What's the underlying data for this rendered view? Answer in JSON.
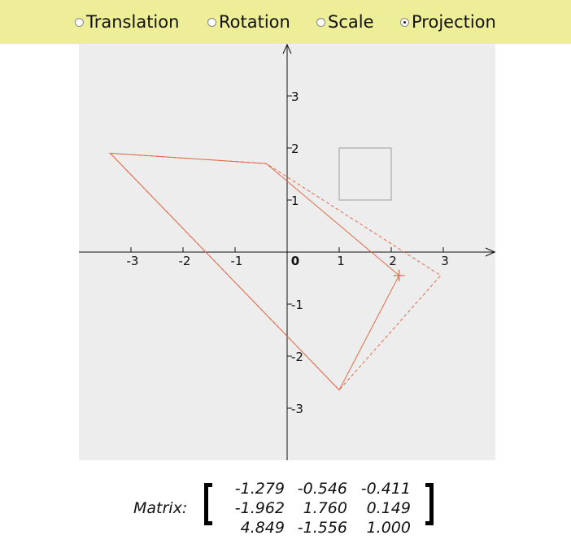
{
  "mode_selector": {
    "options": [
      {
        "label": "Translation",
        "selected": false
      },
      {
        "label": "Rotation",
        "selected": false
      },
      {
        "label": "Scale",
        "selected": false
      },
      {
        "label": "Projection",
        "selected": true
      }
    ]
  },
  "plot": {
    "background": "#ededed",
    "axis_color": "#111111",
    "shape_color": "#e06b4a",
    "reference_square_color": "#aaaaaa",
    "xlim": [
      -4,
      4
    ],
    "ylim": [
      -4,
      4
    ],
    "x_ticks": [
      "-3",
      "-2",
      "-1",
      "0",
      "1",
      "2",
      "3"
    ],
    "y_ticks": [
      "3",
      "2",
      "1",
      "-1",
      "-2",
      "-3"
    ],
    "reference_square": {
      "x": [
        1,
        2
      ],
      "y": [
        1,
        2
      ]
    },
    "solid_polygon": [
      [
        -3.4,
        1.9
      ],
      [
        -0.4,
        1.7
      ],
      [
        2.15,
        -0.45
      ],
      [
        1.0,
        -2.65
      ]
    ],
    "dashed_polygon": [
      [
        -3.4,
        1.9
      ],
      [
        -0.4,
        1.7
      ],
      [
        2.95,
        -0.45
      ],
      [
        1.0,
        -2.65
      ]
    ],
    "handle_point": [
      2.15,
      -0.45
    ]
  },
  "matrix": {
    "label": "Matrix:",
    "rows": [
      [
        "-1.279",
        "-0.546",
        "-0.411"
      ],
      [
        "-1.962",
        "1.760",
        "0.149"
      ],
      [
        "4.849",
        "-1.556",
        "1.000"
      ]
    ]
  }
}
